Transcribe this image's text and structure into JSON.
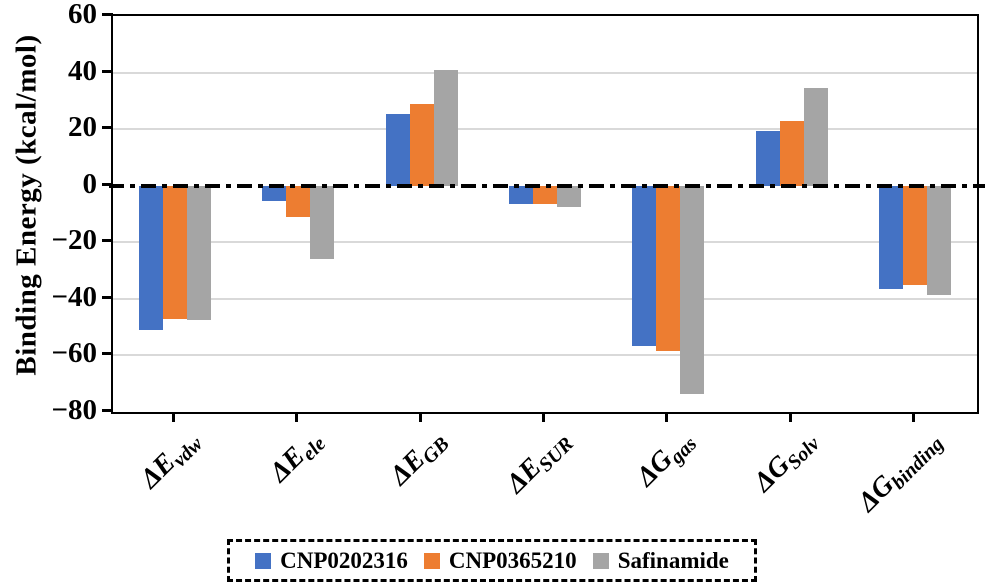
{
  "chart_data": {
    "type": "bar",
    "title": "",
    "ylabel": "Binding Energy (kcal/mol)",
    "xlabel": "",
    "ylim": [
      -80,
      60
    ],
    "ytick_step": 20,
    "yticks": [
      60,
      40,
      20,
      0,
      -20,
      -40,
      -60,
      -80
    ],
    "ytick_labels": [
      "60",
      "40",
      "20",
      "0",
      "−20",
      "−40",
      "−60",
      "−80"
    ],
    "grid": true,
    "gridline_color": "#d9d9d9",
    "zero_line_style": "dash-dot",
    "legend_position": "bottom",
    "legend_border": "dash-dot",
    "categories": [
      {
        "main": "ΔE",
        "sub": "vdw"
      },
      {
        "main": "ΔE",
        "sub": "ele"
      },
      {
        "main": "ΔE",
        "sub": "GB"
      },
      {
        "main": "ΔE",
        "sub": "SUR"
      },
      {
        "main": "ΔG",
        "sub": "gas"
      },
      {
        "main": "ΔG",
        "sub": "Solv"
      },
      {
        "main": "ΔG",
        "sub": "binding"
      }
    ],
    "series": [
      {
        "name": "CNP0202316",
        "color": "#4472C4",
        "values": [
          -51,
          -5.5,
          25.5,
          -6.5,
          -56.5,
          19.5,
          -36.5
        ]
      },
      {
        "name": "CNP0365210",
        "color": "#ED7D31",
        "values": [
          -47,
          -11,
          29,
          -6.5,
          -58.5,
          23,
          -35
        ]
      },
      {
        "name": "Safinamide",
        "color": "#A5A5A5",
        "values": [
          -47.5,
          -26,
          41,
          -7.5,
          -73.5,
          34.5,
          -38.5
        ]
      }
    ]
  }
}
